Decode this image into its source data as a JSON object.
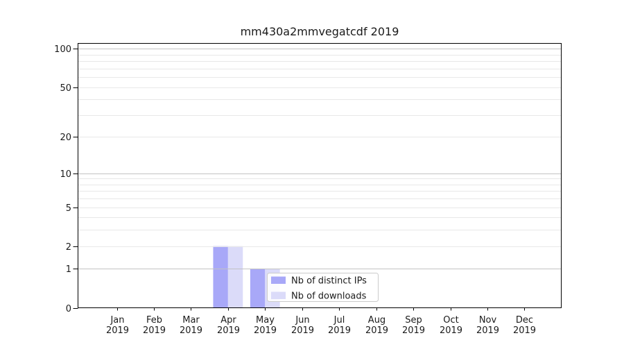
{
  "chart_data": {
    "type": "bar",
    "title": "mm430a2mmvegatcdf 2019",
    "categories": [
      "Jan",
      "Feb",
      "Mar",
      "Apr",
      "May",
      "Jun",
      "Jul",
      "Aug",
      "Sep",
      "Oct",
      "Nov",
      "Dec"
    ],
    "tick_year": "2019",
    "series": [
      {
        "name": "Nb of distinct IPs",
        "color": "#a8a8f8",
        "values": [
          0,
          0,
          0,
          2,
          1,
          0,
          0,
          0,
          0,
          0,
          0,
          0
        ]
      },
      {
        "name": "Nb of downloads",
        "color": "#dbdbf9",
        "values": [
          0,
          0,
          0,
          2,
          1,
          0,
          0,
          0,
          0,
          0,
          0,
          0
        ]
      }
    ],
    "xlabel": "",
    "ylabel": "",
    "yscale": "log1p",
    "ylim": [
      0,
      110.5
    ],
    "y_major_ticks": [
      0,
      1,
      2,
      5,
      10,
      20,
      50,
      100
    ],
    "y_minor_gridlines": [
      3,
      4,
      6,
      7,
      8,
      9,
      30,
      40,
      60,
      70,
      80,
      90
    ],
    "grid": true,
    "legend_position": "lower center",
    "colors": {
      "grid_decade": "#c2c2c2",
      "grid_minor": "#e8e8e8",
      "spine": "#000000",
      "text": "#1a1a1a",
      "legend_border": "#cbcbcb",
      "legend_background": "rgba(255,255,255,0.85)"
    }
  }
}
